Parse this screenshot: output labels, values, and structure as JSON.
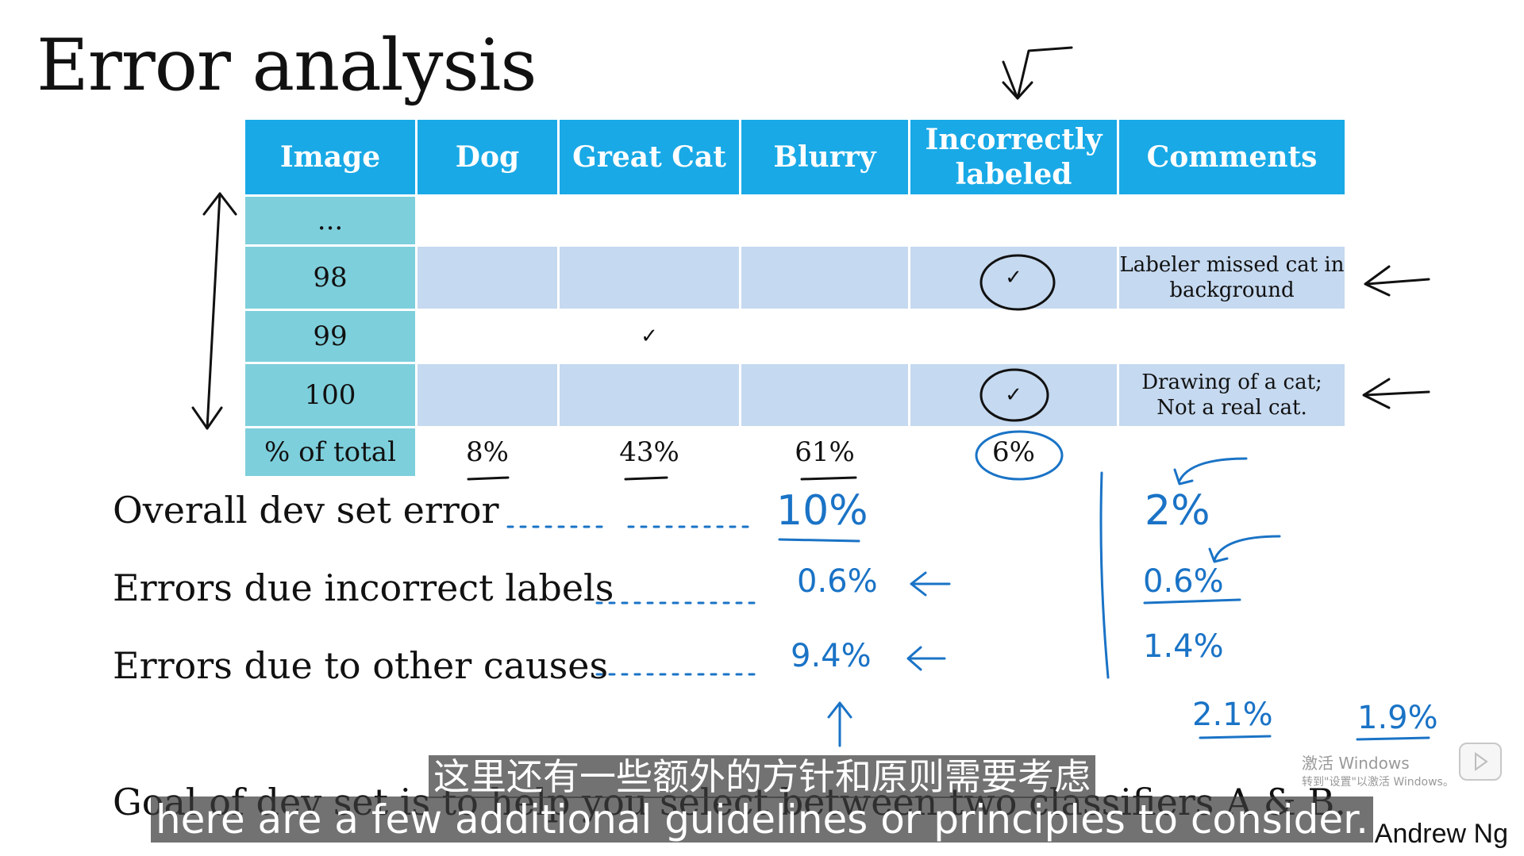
{
  "slide": {
    "title": "Error analysis",
    "table": {
      "headers": [
        "Image",
        "Dog",
        "Great Cat",
        "Blurry",
        "Incorrectly labeled",
        "Comments"
      ],
      "rows": [
        {
          "label": "...",
          "dog": "",
          "great_cat": "",
          "blurry": "",
          "incorrect": "",
          "comment": ""
        },
        {
          "label": "98",
          "dog": "",
          "great_cat": "",
          "blurry": "",
          "incorrect": "✓",
          "comment": "Labeler missed cat in background"
        },
        {
          "label": "99",
          "dog": "",
          "great_cat": "✓",
          "blurry": "",
          "incorrect": "",
          "comment": ""
        },
        {
          "label": "100",
          "dog": "",
          "great_cat": "",
          "blurry": "",
          "incorrect": "✓",
          "comment": "Drawing of a cat; Not a real cat."
        }
      ],
      "total": {
        "label": "% of total",
        "dog": "8%",
        "great_cat": "43%",
        "blurry": "61%",
        "incorrect": "6%"
      }
    },
    "summary": {
      "overall": "Overall dev set error",
      "incorrect": "Errors due incorrect labels",
      "other": "Errors due to other causes",
      "goal": "Goal of dev set is to help you select between two classifiers A & B."
    },
    "handwritten": {
      "overall_a": "10%",
      "incorrect_a": "0.6%",
      "other_a": "9.4%",
      "overall_b": "2%",
      "incorrect_b": "0.6%",
      "other_b": "1.4%",
      "clf_a": "2.1%",
      "clf_b": "1.9%"
    },
    "author": "Andrew Ng"
  },
  "overlay": {
    "watermark_line1": "激活 Windows",
    "watermark_line2": "转到\"设置\"以激活 Windows。"
  },
  "subtitles": {
    "chinese": "这里还有一些额外的方针和原则需要考虑",
    "english": "here are a few additional guidelines or principles to consider."
  },
  "colors": {
    "header_blue": "#19a9e6",
    "label_teal": "#7ecfdc",
    "row_shade": "#c5d9f0",
    "ink_blue": "#1a73c6"
  }
}
